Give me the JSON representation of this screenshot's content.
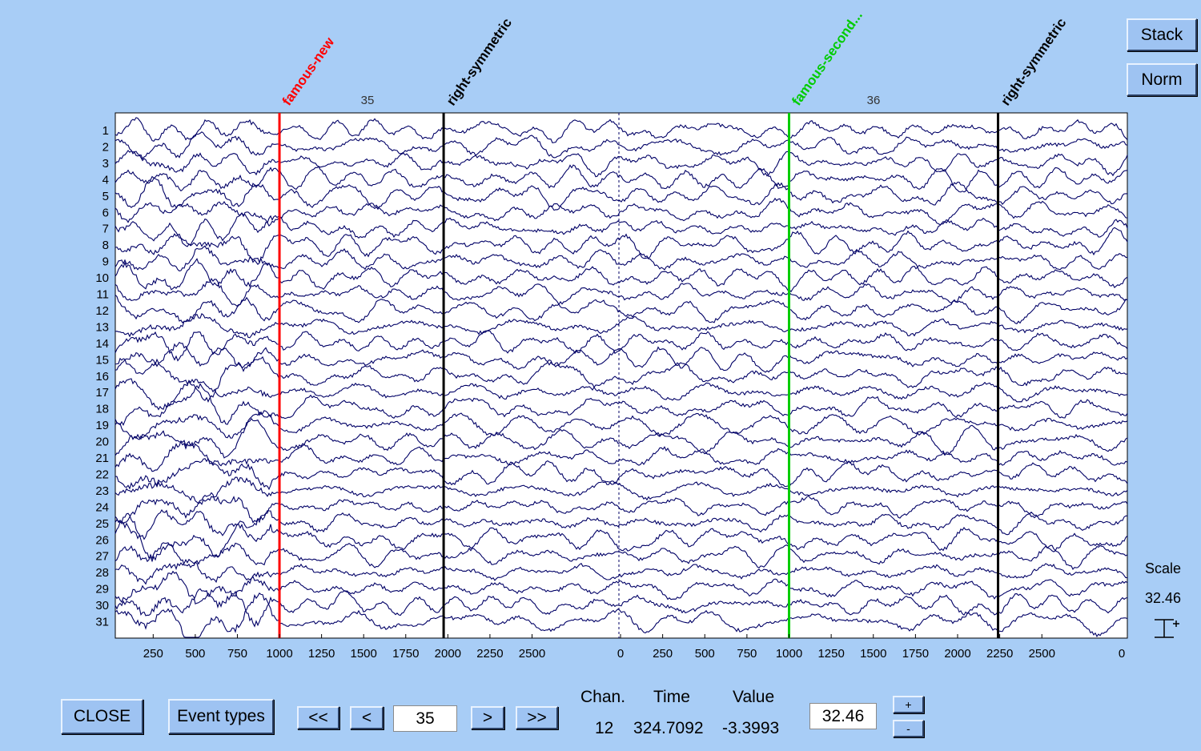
{
  "toolbar": {
    "stack_label": "Stack",
    "norm_label": "Norm"
  },
  "scale_panel": {
    "title": "Scale",
    "value": "32.46"
  },
  "bottom": {
    "close_label": "CLOSE",
    "event_types_label": "Event types",
    "first_label": "<<",
    "prev_label": "<",
    "epoch_value": "35",
    "next_label": ">",
    "last_label": ">>",
    "chan_header": "Chan.",
    "time_header": "Time",
    "value_header": "Value",
    "chan_value": "12",
    "time_value": "324.7092",
    "value_value": "-3.3993",
    "scale_value": "32.46",
    "scale_plus": "+",
    "scale_minus": "-"
  },
  "colors": {
    "background": "#a8cdf6",
    "trace": "#000066",
    "famous_new": "#ff0000",
    "famous_second": "#00cc00",
    "right_symmetric": "#000000"
  },
  "chart_data": {
    "type": "line",
    "title": "",
    "channels": [
      "1",
      "2",
      "3",
      "4",
      "5",
      "6",
      "7",
      "8",
      "9",
      "10",
      "11",
      "12",
      "13",
      "14",
      "15",
      "16",
      "17",
      "18",
      "19",
      "20",
      "21",
      "22",
      "23",
      "24",
      "25",
      "26",
      "27",
      "28",
      "29",
      "30",
      "31"
    ],
    "epochs": [
      {
        "number": "35",
        "xlim": [
          0,
          2700
        ],
        "tick_labels": [
          "250",
          "500",
          "750",
          "1000",
          "1250",
          "1500",
          "1750",
          "2000",
          "2250",
          "2500"
        ]
      },
      {
        "number": "36",
        "xlim": [
          0,
          2700
        ],
        "tick_labels": [
          "0",
          "250",
          "500",
          "750",
          "1000",
          "1250",
          "1500",
          "1750",
          "2000",
          "2250",
          "2500"
        ]
      }
    ],
    "extra_tick_labels": [
      "0"
    ],
    "events": [
      {
        "label": "famous-new",
        "epoch": "35",
        "time": 1000,
        "color": "#ff0000"
      },
      {
        "label": "right-symmetric",
        "epoch": "35",
        "time": 1975,
        "color": "#000000"
      },
      {
        "label": "famous-second...",
        "epoch": "36",
        "time": 1000,
        "color": "#00cc00"
      },
      {
        "label": "right-symmetric",
        "epoch": "36",
        "time": 2240,
        "color": "#000000"
      }
    ],
    "grid": false,
    "legend": "none"
  }
}
